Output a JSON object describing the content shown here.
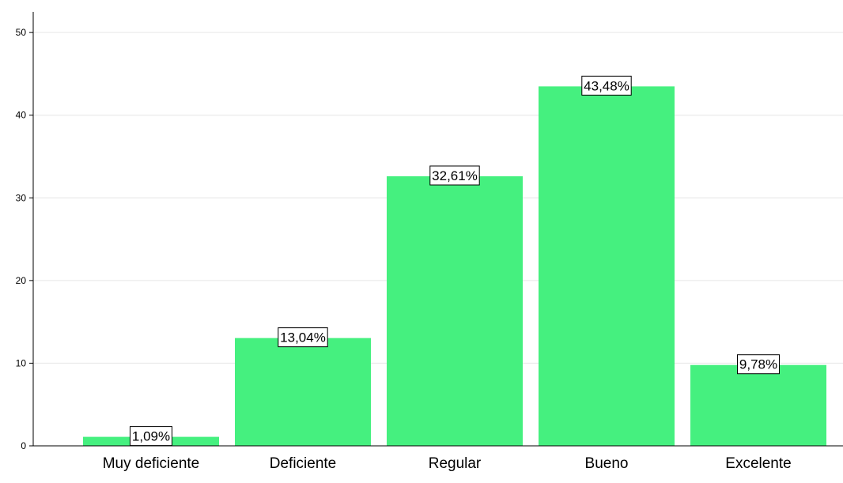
{
  "chart_data": {
    "type": "bar",
    "categories": [
      "Muy deficiente",
      "Deficiente",
      "Regular",
      "Bueno",
      "Excelente"
    ],
    "values": [
      1.09,
      13.04,
      32.61,
      43.48,
      9.78
    ],
    "data_labels": [
      "1,09%",
      "13,04%",
      "32,61%",
      "43,48%",
      "9,78%"
    ],
    "yticks": [
      0,
      10,
      20,
      30,
      40,
      50
    ],
    "ylim": [
      0,
      52.5
    ],
    "grid": true,
    "legend": "none",
    "colors": {
      "bar": "#45f07f",
      "grid": "#e6e6e6",
      "axis": "#000000"
    }
  }
}
